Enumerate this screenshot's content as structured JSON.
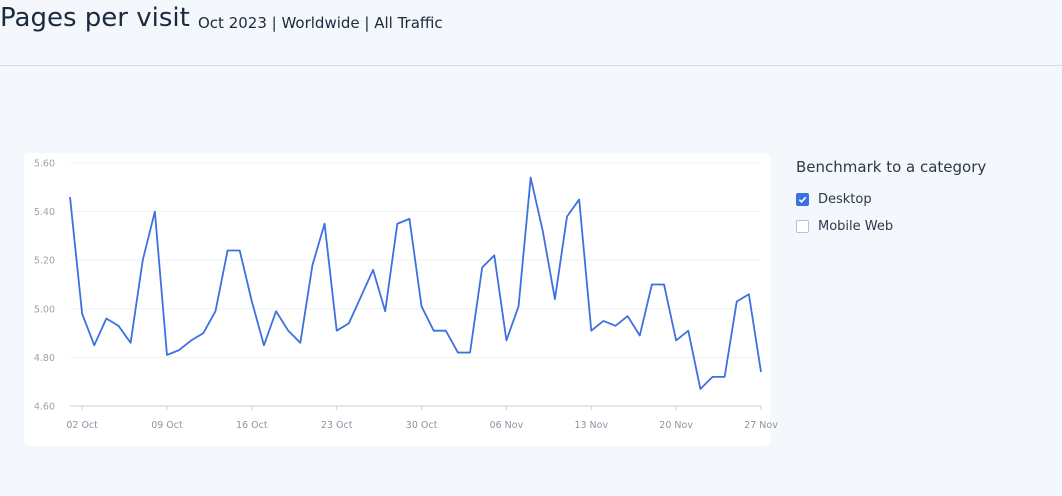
{
  "header": {
    "title": "Pages per visit",
    "subtitle": "Oct 2023 | Worldwide | All Traffic"
  },
  "benchmark": {
    "title": "Benchmark to a category",
    "options": [
      {
        "label": "Desktop",
        "checked": true
      },
      {
        "label": "Mobile Web",
        "checked": false
      }
    ]
  },
  "colors": {
    "line": "#3d70e0",
    "grid": "#eef1f5",
    "tick_text": "#9aa5b1",
    "accent": "#3d70e0"
  },
  "chart_data": {
    "type": "line",
    "ylim": [
      4.6,
      5.6
    ],
    "yticks": [
      "5.60",
      "5.40",
      "5.20",
      "5.00",
      "4.80",
      "4.60"
    ],
    "ytick_values": [
      5.6,
      5.4,
      5.2,
      5.0,
      4.8,
      4.6
    ],
    "xtick_labels": [
      "02 Oct",
      "09 Oct",
      "16 Oct",
      "23 Oct",
      "30 Oct",
      "06 Nov",
      "13 Nov",
      "20 Nov",
      "27 Nov"
    ],
    "xtick_positions": [
      1,
      8,
      15,
      22,
      29,
      36,
      43,
      50,
      57
    ],
    "grid": true,
    "series": [
      {
        "color": "#3d70e0",
        "x": [
          "01 Oct",
          "02 Oct",
          "03 Oct",
          "04 Oct",
          "05 Oct",
          "06 Oct",
          "07 Oct",
          "08 Oct",
          "09 Oct",
          "10 Oct",
          "11 Oct",
          "12 Oct",
          "13 Oct",
          "14 Oct",
          "15 Oct",
          "16 Oct",
          "17 Oct",
          "18 Oct",
          "19 Oct",
          "20 Oct",
          "21 Oct",
          "22 Oct",
          "23 Oct",
          "24 Oct",
          "25 Oct",
          "26 Oct",
          "27 Oct",
          "28 Oct",
          "29 Oct",
          "30 Oct",
          "31 Oct",
          "01 Nov",
          "02 Nov",
          "03 Nov",
          "04 Nov",
          "05 Nov",
          "06 Nov",
          "07 Nov",
          "08 Nov",
          "09 Nov",
          "10 Nov",
          "11 Nov",
          "12 Nov",
          "13 Nov",
          "14 Nov",
          "15 Nov",
          "16 Nov",
          "17 Nov",
          "18 Nov",
          "19 Nov",
          "20 Nov",
          "21 Nov",
          "22 Nov",
          "23 Nov",
          "24 Nov",
          "25 Nov",
          "26 Nov",
          "27 Nov"
        ],
        "values": [
          5.46,
          4.98,
          4.85,
          4.96,
          4.93,
          4.86,
          5.2,
          5.4,
          4.81,
          4.83,
          4.87,
          4.9,
          4.99,
          5.24,
          5.24,
          5.03,
          4.85,
          4.99,
          4.91,
          4.86,
          5.18,
          5.35,
          4.91,
          4.94,
          5.05,
          5.16,
          4.99,
          5.35,
          5.37,
          5.01,
          4.91,
          4.91,
          4.82,
          4.82,
          5.17,
          5.22,
          4.87,
          5.01,
          5.54,
          5.32,
          5.04,
          5.38,
          5.45,
          4.91,
          4.95,
          4.93,
          4.97,
          4.89,
          5.1,
          5.1,
          4.87,
          4.91,
          4.67,
          4.72,
          4.72,
          5.03,
          5.06,
          4.74
        ]
      }
    ]
  }
}
